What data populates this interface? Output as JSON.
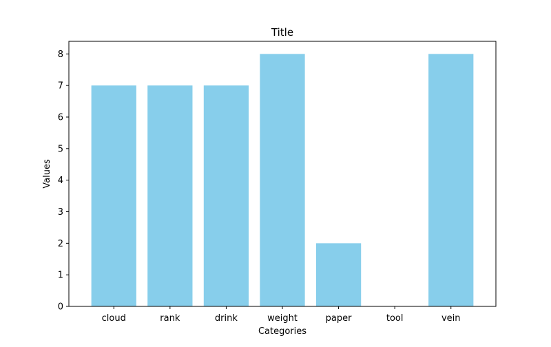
{
  "chart_data": {
    "type": "bar",
    "title": "Title",
    "xlabel": "Categories",
    "ylabel": "Values",
    "categories": [
      "cloud",
      "rank",
      "drink",
      "weight",
      "paper",
      "tool",
      "vein"
    ],
    "values": [
      7,
      7,
      7,
      8,
      2,
      0,
      8
    ],
    "ylim": [
      0,
      8.4
    ],
    "yticks": [
      0,
      1,
      2,
      3,
      4,
      5,
      6,
      7,
      8
    ],
    "bar_color": "#87CEEB",
    "grid": false,
    "legend": "none"
  }
}
